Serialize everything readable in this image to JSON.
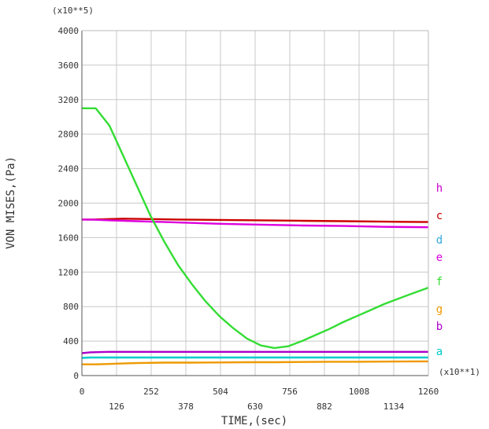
{
  "chart_data": {
    "type": "line",
    "xlabel": "TIME,(sec)",
    "ylabel": "VON MISES,(Pa)",
    "x_multiplier": "(x10**1)",
    "y_multiplier": "(x10**5)",
    "xlim": [
      0,
      1260
    ],
    "ylim": [
      0,
      4000
    ],
    "x_ticks_bottom": [
      "126",
      "378",
      "630",
      "882",
      "1134"
    ],
    "x_ticks_top": [
      "0",
      "252",
      "504",
      "756",
      "1008",
      "1260"
    ],
    "y_ticks": [
      "0",
      "400",
      "800",
      "1200",
      "1600",
      "2000",
      "2400",
      "2800",
      "3200",
      "3600",
      "4000"
    ],
    "grid": true,
    "legend_placement": "right",
    "series": [
      {
        "name": "h",
        "color": "#cc00cc",
        "x": [],
        "y": []
      },
      {
        "name": "c",
        "color": "#cc0000",
        "x": [
          0,
          40,
          100,
          150,
          250,
          350,
          500,
          650,
          800,
          950,
          1100,
          1260
        ],
        "y": [
          1810,
          1810,
          1815,
          1820,
          1815,
          1810,
          1805,
          1800,
          1795,
          1790,
          1785,
          1780
        ]
      },
      {
        "name": "d",
        "color": "#33aadd",
        "x": [],
        "y": []
      },
      {
        "name": "e",
        "color": "#dd00dd",
        "x": [
          0,
          40,
          100,
          200,
          300,
          400,
          500,
          650,
          800,
          950,
          1100,
          1260
        ],
        "y": [
          1810,
          1808,
          1800,
          1790,
          1780,
          1770,
          1760,
          1750,
          1740,
          1735,
          1725,
          1720
        ]
      },
      {
        "name": "f",
        "color": "#33dd33",
        "x": [
          0,
          50,
          100,
          150,
          200,
          250,
          300,
          350,
          400,
          450,
          500,
          550,
          600,
          650,
          700,
          750,
          800,
          850,
          900,
          950,
          1000,
          1050,
          1100,
          1150,
          1200,
          1260
        ],
        "y": [
          3100,
          3100,
          2900,
          2550,
          2200,
          1850,
          1550,
          1280,
          1060,
          860,
          690,
          550,
          430,
          350,
          320,
          340,
          400,
          470,
          540,
          620,
          690,
          760,
          830,
          890,
          950,
          1020
        ]
      },
      {
        "name": "g",
        "color": "#ee9900",
        "x": [
          0,
          50,
          100,
          150,
          200,
          300,
          400,
          500,
          600,
          700,
          800,
          900,
          1000,
          1100,
          1260
        ],
        "y": [
          130,
          130,
          135,
          140,
          145,
          150,
          150,
          152,
          155,
          155,
          158,
          160,
          160,
          162,
          165
        ]
      },
      {
        "name": "b",
        "color": "#aa00cc",
        "x": [
          0,
          30,
          100,
          300,
          600,
          900,
          1260
        ],
        "y": [
          260,
          270,
          275,
          275,
          275,
          275,
          275
        ]
      },
      {
        "name": "a",
        "color": "#00cccc",
        "x": [
          0,
          30,
          100,
          300,
          600,
          900,
          1260
        ],
        "y": [
          205,
          210,
          210,
          210,
          210,
          210,
          210
        ]
      }
    ]
  }
}
